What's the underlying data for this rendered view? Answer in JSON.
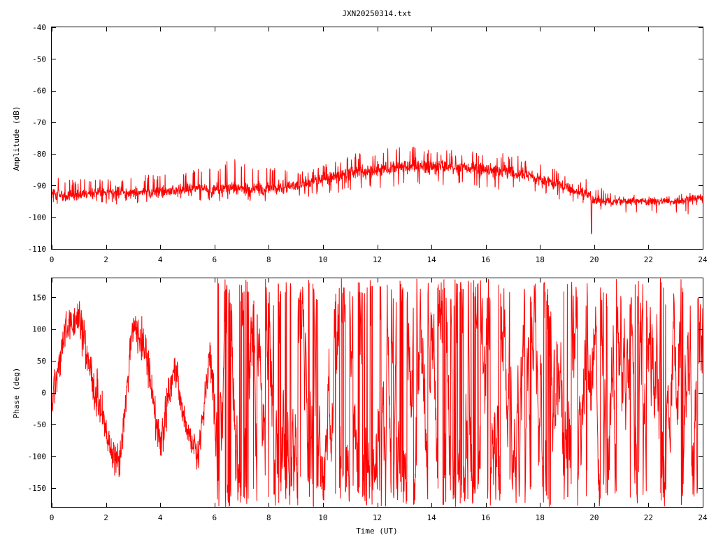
{
  "chart_data": [
    {
      "type": "line",
      "title": "JXN20250314.txt",
      "xlabel": "",
      "ylabel": "Amplitude (dB)",
      "xlim": [
        0,
        24
      ],
      "ylim": [
        -110,
        -40
      ],
      "xticks": [
        "0",
        "2",
        "4",
        "6",
        "8",
        "10",
        "12",
        "14",
        "16",
        "18",
        "20",
        "22",
        "24"
      ],
      "yticks": [
        "-40",
        "-50",
        "-60",
        "-70",
        "-80",
        "-90",
        "-100",
        "-110"
      ],
      "grid": false,
      "color": "#ff0000",
      "series": [
        {
          "x": [
            0,
            1,
            2,
            3,
            4,
            5,
            6,
            6.8,
            7,
            8,
            9,
            10,
            11,
            12,
            13,
            14,
            15,
            16,
            17,
            18,
            19,
            19.8,
            20,
            21,
            22,
            23,
            24
          ],
          "upper": [
            -87,
            -88,
            -87,
            -87,
            -86,
            -85,
            -84,
            -81,
            -83,
            -84,
            -85,
            -83,
            -80,
            -79,
            -77,
            -78,
            -79,
            -79,
            -80,
            -83,
            -86,
            -88,
            -90,
            -92,
            -93,
            -93,
            -91
          ],
          "center": [
            -93,
            -93,
            -92,
            -92,
            -92,
            -91,
            -91,
            -91,
            -91,
            -91,
            -90,
            -88,
            -86,
            -85,
            -84,
            -84,
            -84,
            -85,
            -86,
            -88,
            -91,
            -93,
            -95,
            -95,
            -95,
            -95,
            -94
          ],
          "lower": [
            -96,
            -96,
            -96,
            -96,
            -96,
            -95,
            -95,
            -95,
            -95,
            -95,
            -94,
            -93,
            -92,
            -91,
            -90,
            -90,
            -90,
            -91,
            -92,
            -93,
            -95,
            -97,
            -98,
            -99,
            -99,
            -100,
            -99
          ],
          "spikes": [
            {
              "x": 19.9,
              "y": -105.5
            }
          ]
        }
      ]
    },
    {
      "type": "line",
      "title": "",
      "xlabel": "Time (UT)",
      "ylabel": "Phase (deg)",
      "xlim": [
        0,
        24
      ],
      "ylim": [
        -180,
        180
      ],
      "xticks": [
        "0",
        "2",
        "4",
        "6",
        "8",
        "10",
        "12",
        "14",
        "16",
        "18",
        "20",
        "22",
        "24"
      ],
      "yticks": [
        "150",
        "100",
        "50",
        "0",
        "-50",
        "-100",
        "-150"
      ],
      "grid": false,
      "color": "#ff0000",
      "series": [
        {
          "x": [
            0,
            0.5,
            1,
            1.5,
            2,
            2.5,
            3,
            3.5,
            4,
            4.5,
            5,
            5.4,
            5.8,
            6,
            7,
            8,
            9,
            10,
            11,
            12,
            13,
            14,
            15,
            16,
            17,
            18,
            19,
            20,
            21,
            22,
            23,
            24
          ],
          "center": [
            -20,
            100,
            120,
            20,
            -60,
            -120,
            110,
            60,
            -90,
            40,
            -60,
            -100,
            50,
            0,
            0,
            0,
            0,
            0,
            0,
            0,
            0,
            0,
            0,
            0,
            0,
            0,
            0,
            0,
            0,
            0,
            0,
            0
          ],
          "spread": [
            60,
            60,
            60,
            70,
            60,
            60,
            60,
            70,
            70,
            60,
            50,
            50,
            60,
            180,
            180,
            180,
            180,
            180,
            180,
            180,
            180,
            180,
            180,
            180,
            180,
            180,
            180,
            180,
            180,
            180,
            180,
            180
          ],
          "wraps": true
        }
      ]
    }
  ]
}
